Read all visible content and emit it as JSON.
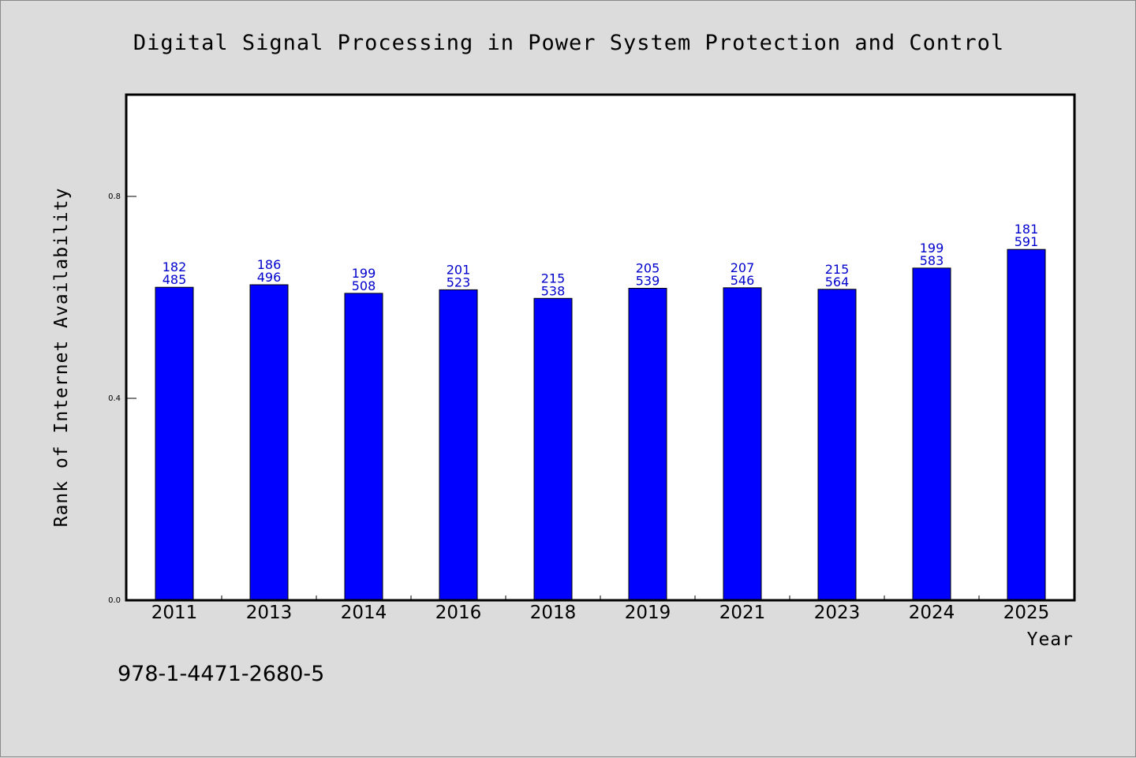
{
  "chart_data": {
    "type": "bar",
    "title": "Digital Signal Processing in Power System Protection and Control",
    "xlabel": "Year",
    "ylabel": "Rank of Internet Availability",
    "categories": [
      "2011",
      "2013",
      "2014",
      "2016",
      "2018",
      "2019",
      "2021",
      "2023",
      "2024",
      "2025"
    ],
    "values": [
      0.62,
      0.625,
      0.608,
      0.615,
      0.598,
      0.618,
      0.619,
      0.616,
      0.658,
      0.695
    ],
    "annotations": [
      [
        "182",
        "485"
      ],
      [
        "186",
        "496"
      ],
      [
        "199",
        "508"
      ],
      [
        "201",
        "523"
      ],
      [
        "215",
        "538"
      ],
      [
        "205",
        "539"
      ],
      [
        "207",
        "546"
      ],
      [
        "215",
        "564"
      ],
      [
        "199",
        "583"
      ],
      [
        "181",
        "591"
      ]
    ],
    "yticks": [
      "0.0",
      "0.4",
      "0.8"
    ],
    "ylim": [
      0,
      1.0
    ],
    "grid": false,
    "bar_color": "#0000ff",
    "label_color": "#0000cc"
  },
  "footer": {
    "isbn": "978-1-4471-2680-5"
  }
}
